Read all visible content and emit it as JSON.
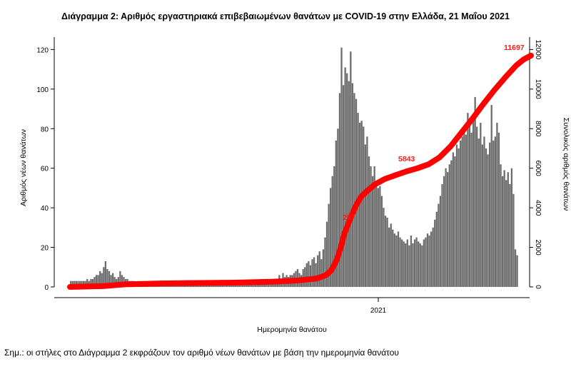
{
  "title": "Διάγραμμα 2: Αριθμός εργαστηριακά επιβεβαιωμένων θανάτων με COVID-19 στην Ελλάδα, 21 Μαΐου 2021",
  "note": "Σημ.: οι στήλες στο Διάγραμμα 2 εκφράζουν τον αριθμό νέων θανάτων με βάση την ημερομηνία θανάτου",
  "colors": {
    "bars": "#6e6e6e",
    "line": "#ff0000",
    "annotation": "#ff1a1a"
  },
  "chart_data": {
    "type": "bar+line",
    "title": "Διάγραμμα 2: Αριθμός εργαστηριακά επιβεβαιωμένων θανάτων με COVID-19 στην Ελλάδα, 21 Μαΐου 2021",
    "xlabel": "Ημερομηνία θανάτου",
    "ylabel_left": "Αριθμός νέων θανάτων",
    "ylabel_right": "Συνολικός αριθμός θανάτων",
    "x_ticks": [
      "2021"
    ],
    "yticks_left": [
      0,
      20,
      40,
      60,
      80,
      100,
      120
    ],
    "yticks_right": [
      "0",
      "2000",
      "4000",
      "6000",
      "8000",
      "10000",
      "12000"
    ],
    "ylim_left": [
      0,
      127
    ],
    "ylim_right": [
      0,
      12700
    ],
    "annotations": [
      {
        "text": "297",
        "series": "cumulative"
      },
      {
        "text": "5843",
        "series": "cumulative"
      },
      {
        "text": "11697",
        "series": "cumulative"
      }
    ],
    "series": [
      {
        "kind": "bar",
        "axis": "left",
        "values": [
          3,
          3,
          3,
          3,
          3,
          3,
          3,
          3,
          3,
          4,
          3,
          4,
          4,
          5,
          6,
          6,
          8,
          7,
          10,
          13,
          9,
          8,
          6,
          7,
          5,
          4,
          5,
          8,
          6,
          5,
          4,
          4,
          3,
          3,
          3,
          2,
          2,
          2,
          2,
          2,
          2,
          2,
          2,
          2,
          3,
          2,
          2,
          2,
          2,
          2,
          2,
          2,
          2,
          2,
          2,
          2,
          2,
          2,
          2,
          2,
          2,
          2,
          2,
          2,
          2,
          2,
          2,
          2,
          2,
          2,
          2,
          2,
          2,
          2,
          2,
          2,
          2,
          2,
          2,
          2,
          2,
          2,
          2,
          2,
          2,
          2,
          2,
          2,
          2,
          2,
          3,
          2,
          3,
          3,
          3,
          2,
          3,
          3,
          3,
          3,
          3,
          3,
          3,
          3,
          3,
          4,
          3,
          4,
          4,
          3,
          4,
          4,
          4,
          4,
          6,
          4,
          7,
          5,
          6,
          5,
          6,
          6,
          7,
          8,
          9,
          7,
          6,
          9,
          10,
          12,
          13,
          11,
          14,
          15,
          12,
          16,
          18,
          14,
          19,
          25,
          33,
          42,
          50,
          56,
          61,
          74,
          80,
          98,
          121,
          102,
          111,
          108,
          104,
          119,
          103,
          98,
          95,
          88,
          83,
          84,
          81,
          72,
          76,
          66,
          61,
          56,
          61,
          52,
          50,
          51,
          46,
          40,
          36,
          35,
          30,
          32,
          29,
          27,
          26,
          28,
          25,
          24,
          23,
          22,
          24,
          21,
          26,
          22,
          24,
          25,
          23,
          22,
          21,
          24,
          25,
          27,
          26,
          28,
          30,
          34,
          38,
          42,
          46,
          52,
          56,
          60,
          58,
          62,
          64,
          68,
          66,
          72,
          70,
          74,
          76,
          80,
          77,
          88,
          82,
          78,
          86,
          96,
          81,
          75,
          83,
          72,
          76,
          70,
          67,
          73,
          92,
          74,
          76,
          83,
          78,
          62,
          56,
          59,
          54,
          58,
          52,
          60,
          47,
          19,
          16
        ]
      },
      {
        "kind": "line",
        "axis": "right",
        "name": "Συνολικός αριθμός θανάτων",
        "points": [
          [
            0,
            0
          ],
          [
            18,
            40
          ],
          [
            30,
            130
          ],
          [
            50,
            175
          ],
          [
            70,
            200
          ],
          [
            90,
            215
          ],
          [
            110,
            260
          ],
          [
            125,
            330
          ],
          [
            135,
            430
          ],
          [
            140,
            600
          ],
          [
            143,
            850
          ],
          [
            146,
            1400
          ],
          [
            148,
            2000
          ],
          [
            150,
            2700
          ],
          [
            153,
            3400
          ],
          [
            156,
            4050
          ],
          [
            159,
            4550
          ],
          [
            163,
            4900
          ],
          [
            167,
            5200
          ],
          [
            172,
            5450
          ],
          [
            178,
            5650
          ],
          [
            184,
            5843
          ],
          [
            190,
            6000
          ],
          [
            196,
            6200
          ],
          [
            202,
            6550
          ],
          [
            208,
            7100
          ],
          [
            214,
            7800
          ],
          [
            220,
            8500
          ],
          [
            226,
            9250
          ],
          [
            232,
            9950
          ],
          [
            238,
            10600
          ],
          [
            244,
            11200
          ],
          [
            248,
            11500
          ],
          [
            252,
            11697
          ]
        ]
      }
    ]
  }
}
